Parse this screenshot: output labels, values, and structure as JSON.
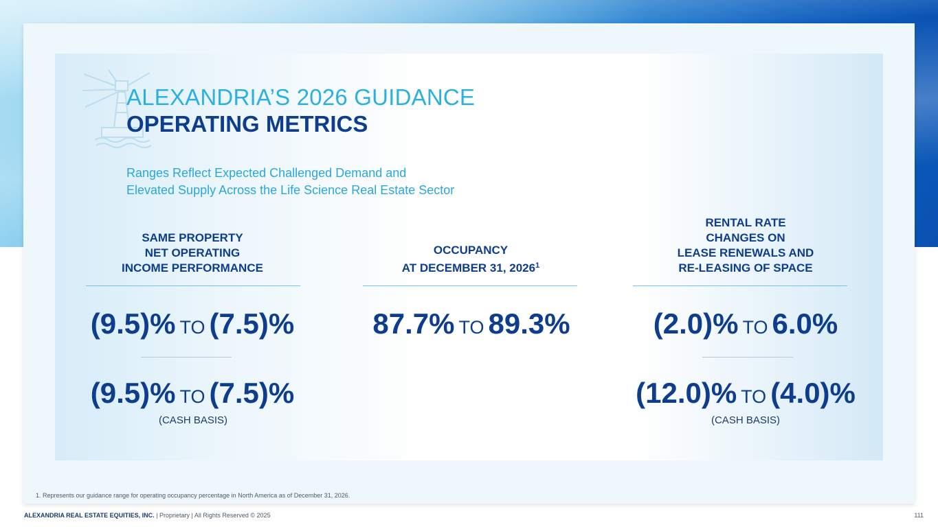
{
  "title": {
    "line1": "ALEXANDRIA’S 2026 GUIDANCE",
    "line2": "OPERATING METRICS"
  },
  "subtitle": {
    "line1": "Ranges Reflect Expected Challenged Demand and",
    "line2": "Elevated Supply Across the Life Science Real Estate Sector"
  },
  "columns": [
    {
      "heading_lines": [
        "SAME PROPERTY",
        "NET OPERATING",
        "INCOME PERFORMANCE"
      ],
      "primary": {
        "low": "(9.5)%",
        "to": "TO",
        "high": "(7.5)%"
      },
      "secondary": {
        "low": "(9.5)%",
        "to": "TO",
        "high": "(7.5)%"
      },
      "secondary_label": "(CASH BASIS)"
    },
    {
      "heading_lines": [
        "OCCUPANCY",
        "AT DECEMBER 31, 2026"
      ],
      "heading_sup": "1",
      "primary": {
        "low": "87.7%",
        "to": "TO",
        "high": "89.3%"
      }
    },
    {
      "heading_lines": [
        "RENTAL RATE",
        "CHANGES ON",
        "LEASE RENEWALS AND",
        "RE-LEASING OF SPACE"
      ],
      "primary": {
        "low": "(2.0)%",
        "to": "TO",
        "high": "6.0%"
      },
      "secondary": {
        "low": "(12.0)%",
        "to": "TO",
        "high": "(4.0)%"
      },
      "secondary_label": "(CASH BASIS)"
    }
  ],
  "footnote": "1.   Represents our guidance range for operating occupancy percentage in North America as of December 31, 2026.",
  "footer": {
    "company": "ALEXANDRIA REAL ESTATE EQUITIES, INC.",
    "rest": " | Proprietary | All Rights Reserved © 2025"
  },
  "page_number": "111",
  "colors": {
    "navy": "#0d3d8c",
    "cyan": "#2bb0e0",
    "rule": "#6fc4e8"
  },
  "icons": [
    "lighthouse-icon"
  ]
}
